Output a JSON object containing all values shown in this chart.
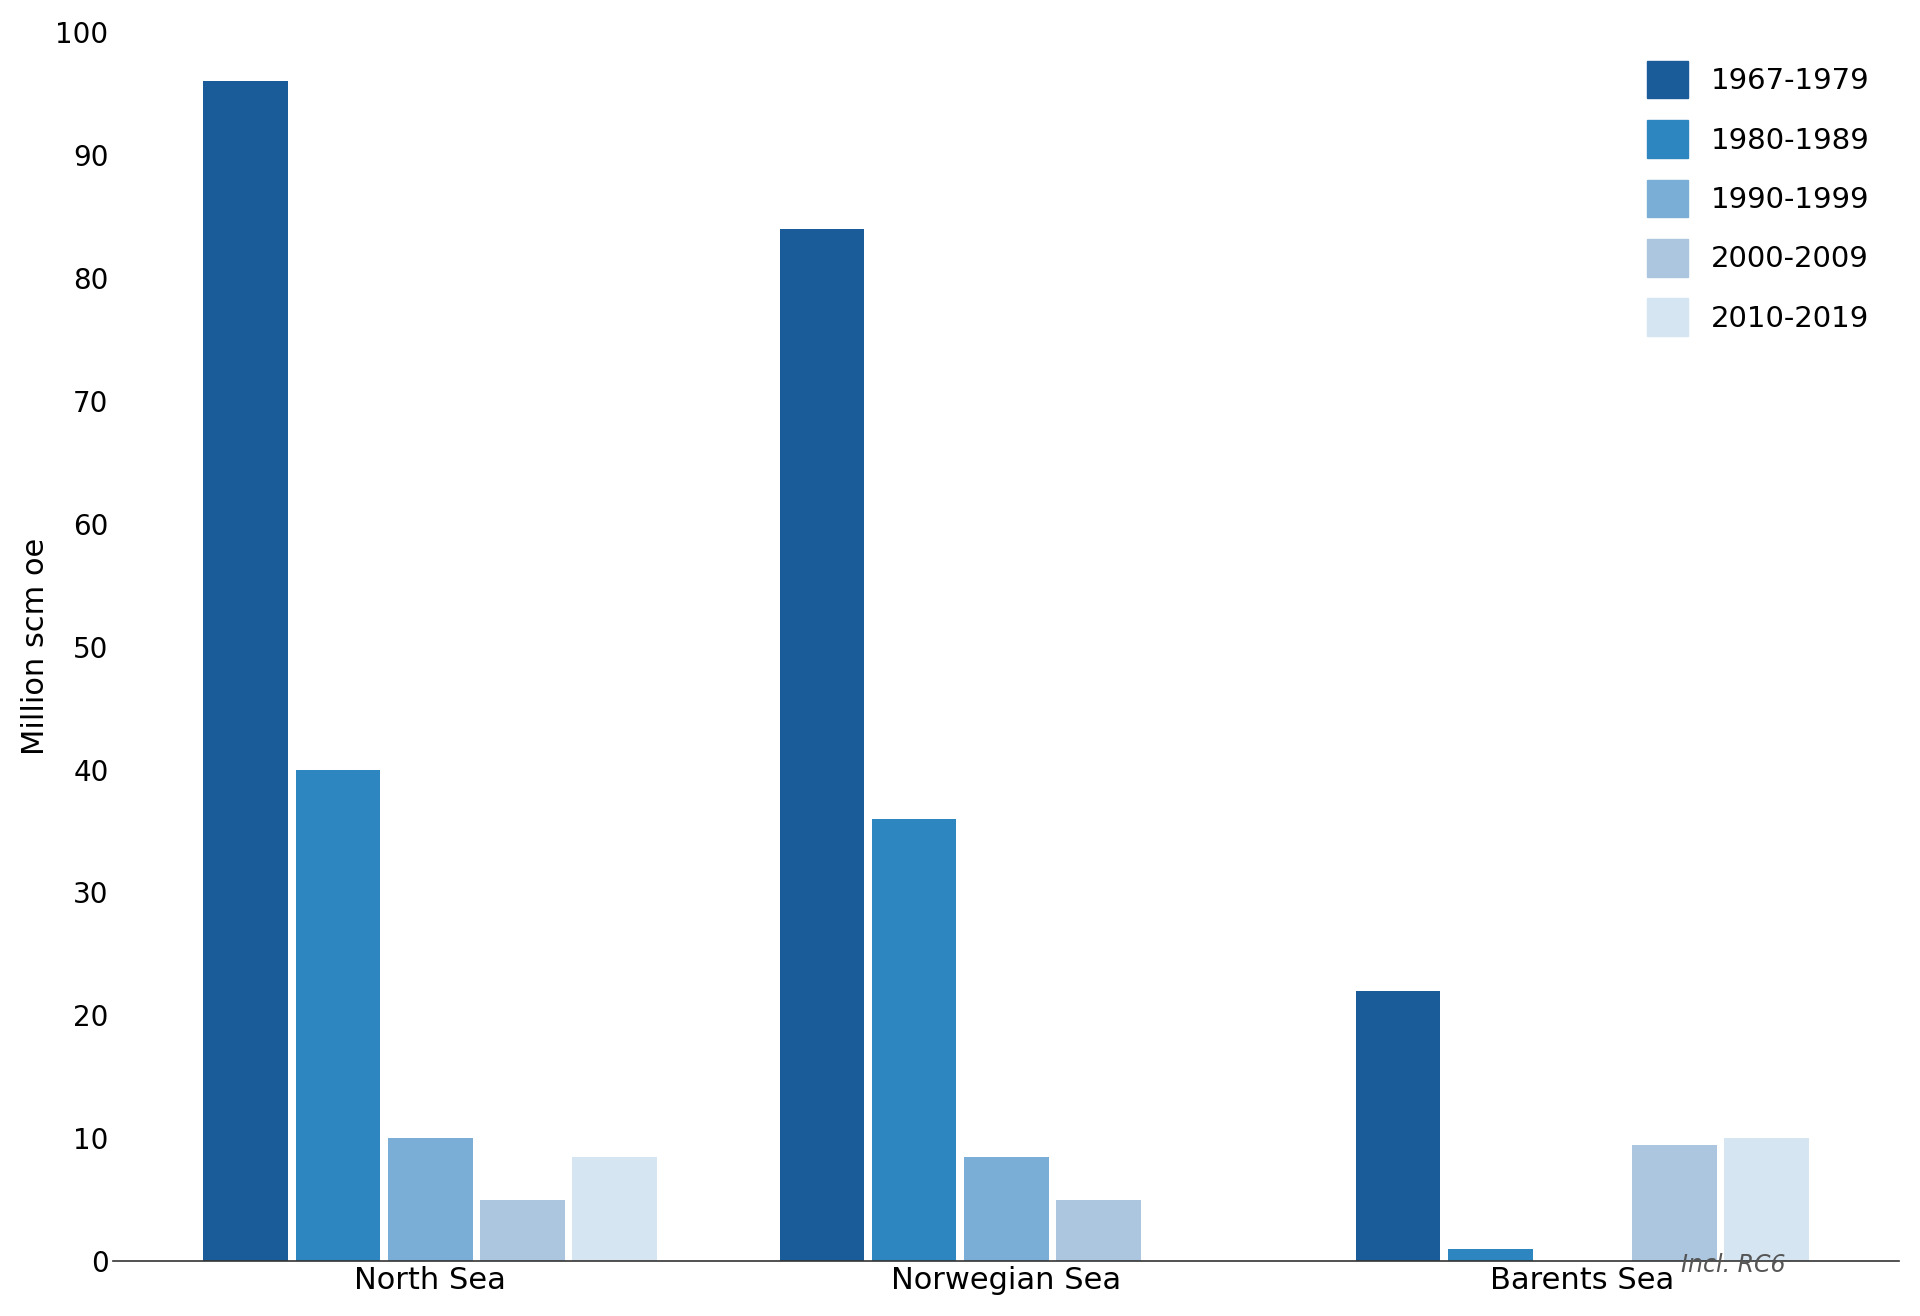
{
  "regions": [
    "North Sea",
    "Norwegian Sea",
    "Barents Sea"
  ],
  "periods": [
    "1967-1979",
    "1980-1989",
    "1990-1999",
    "2000-2009",
    "2010-2019"
  ],
  "colors": [
    "#1a5c99",
    "#2e86c1",
    "#7aaed6",
    "#adc6e0",
    "#d5e5f2"
  ],
  "values": {
    "North Sea": [
      96,
      40,
      10,
      5,
      8.5
    ],
    "Norwegian Sea": [
      84,
      36,
      8.5,
      5,
      0
    ],
    "Barents Sea": [
      22,
      1,
      0,
      9.5,
      10
    ]
  },
  "ylabel": "Million scm oe",
  "ylim": [
    0,
    100
  ],
  "yticks": [
    0,
    10,
    20,
    30,
    40,
    50,
    60,
    70,
    80,
    90,
    100
  ],
  "annotation": "Incl. RC6",
  "background_color": "#ffffff",
  "legend_fontsize": 21,
  "axis_fontsize": 22,
  "tick_fontsize": 20,
  "annotation_fontsize": 17
}
